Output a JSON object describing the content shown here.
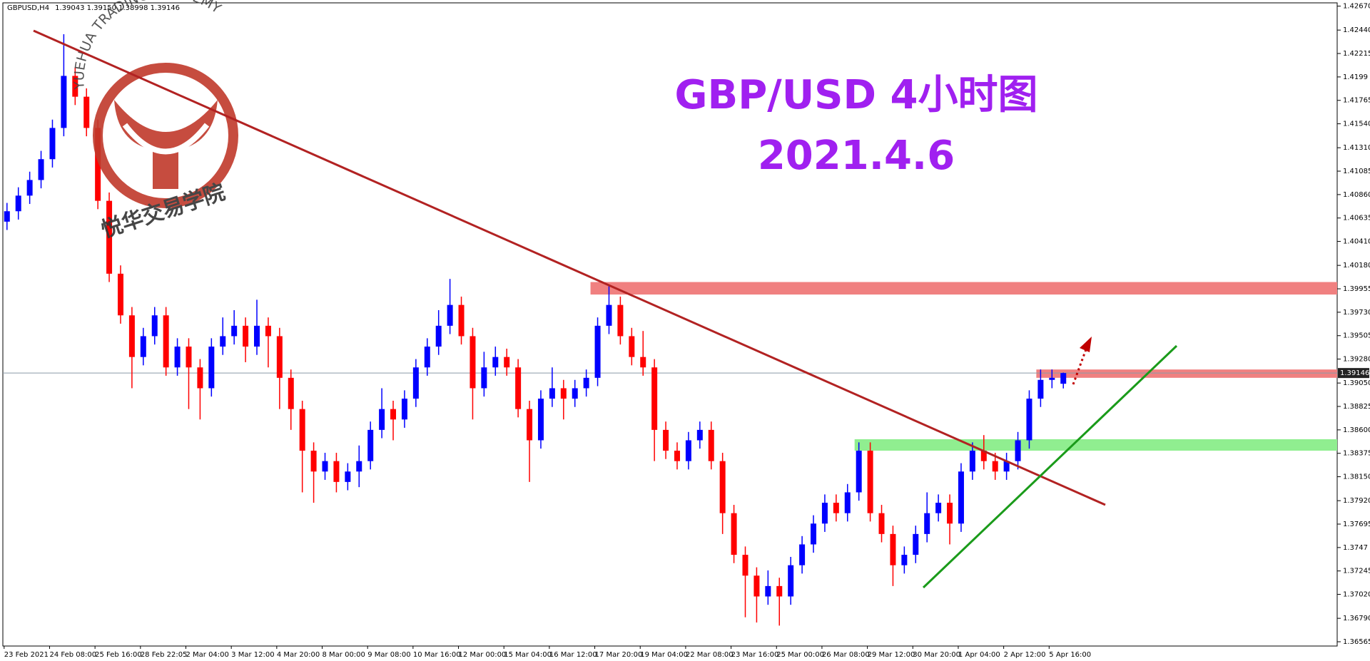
{
  "header": {
    "symbol": "GBPUSD,H4",
    "ohlc_text": "1.39043 1.39150 1.38998 1.39146"
  },
  "logo": {
    "text_en": "YUEHUA TRADING ACADEMY",
    "text_cn": "悦华交易学院"
  },
  "chart_data": {
    "type": "candlestick",
    "title": "GBP/USD 4小时图",
    "subtitle": "2021.4.6",
    "categories": [
      "23 Feb 2021",
      null,
      null,
      null,
      "24 Feb 08:00",
      null,
      null,
      null,
      "25 Feb 16:00",
      null,
      null,
      null,
      "28 Feb 22:05",
      null,
      null,
      null,
      "2 Mar 04:00",
      null,
      null,
      null,
      "3 Mar 12:00",
      null,
      null,
      null,
      "4 Mar 20:00",
      null,
      null,
      null,
      "8 Mar 00:00",
      null,
      null,
      null,
      "9 Mar 08:00",
      null,
      null,
      null,
      "10 Mar 16:00",
      null,
      null,
      null,
      "12 Mar 00:00",
      null,
      null,
      null,
      "15 Mar 04:00",
      null,
      null,
      null,
      "16 Mar 12:00",
      null,
      null,
      null,
      "17 Mar 20:00",
      null,
      null,
      null,
      "19 Mar 04:00",
      null,
      null,
      null,
      "22 Mar 08:00",
      null,
      null,
      null,
      "23 Mar 16:00",
      null,
      null,
      null,
      "25 Mar 00:00",
      null,
      null,
      null,
      "26 Mar 08:00",
      null,
      null,
      null,
      "29 Mar 12:00",
      null,
      null,
      null,
      "30 Mar 20:00",
      null,
      null,
      null,
      "1 Apr 04:00",
      null,
      null,
      null,
      "2 Apr 12:00",
      null,
      null,
      null,
      "5 Apr 16:00",
      null
    ],
    "open": [
      1.406,
      1.407,
      1.4085,
      1.41,
      1.412,
      1.415,
      1.42,
      1.418,
      1.415,
      1.408,
      1.401,
      1.397,
      1.393,
      1.395,
      1.397,
      1.392,
      1.394,
      1.392,
      1.39,
      1.394,
      1.395,
      1.396,
      1.394,
      1.396,
      1.395,
      1.391,
      1.388,
      1.384,
      1.382,
      1.383,
      1.381,
      1.382,
      1.383,
      1.386,
      1.388,
      1.387,
      1.389,
      1.392,
      1.394,
      1.396,
      1.398,
      1.395,
      1.39,
      1.392,
      1.393,
      1.392,
      1.388,
      1.385,
      1.389,
      1.39,
      1.389,
      1.39,
      1.391,
      1.396,
      1.398,
      1.395,
      1.393,
      1.392,
      1.386,
      1.384,
      1.383,
      1.385,
      1.386,
      1.383,
      1.378,
      1.374,
      1.372,
      1.37,
      1.371,
      1.37,
      1.373,
      1.375,
      1.377,
      1.379,
      1.378,
      1.38,
      1.384,
      1.378,
      1.376,
      1.373,
      1.374,
      1.376,
      1.378,
      1.379,
      1.377,
      1.382,
      1.384,
      1.383,
      1.382,
      1.383,
      1.385,
      1.389,
      1.3908,
      1.39043
    ],
    "high": [
      1.4078,
      1.4093,
      1.4108,
      1.4128,
      1.4158,
      1.424,
      1.4208,
      1.4188,
      1.4158,
      1.4088,
      1.4018,
      1.3978,
      1.3958,
      1.3978,
      1.3978,
      1.3948,
      1.3948,
      1.3928,
      1.3948,
      1.3968,
      1.3975,
      1.3968,
      1.3985,
      1.3968,
      1.3958,
      1.3918,
      1.3888,
      1.3848,
      1.3838,
      1.3838,
      1.3828,
      1.3845,
      1.3868,
      1.39,
      1.3888,
      1.3898,
      1.3928,
      1.3948,
      1.3975,
      1.4005,
      1.3988,
      1.3958,
      1.3935,
      1.394,
      1.3938,
      1.3928,
      1.3888,
      1.3898,
      1.392,
      1.3908,
      1.3908,
      1.3918,
      1.3968,
      1.3998,
      1.3988,
      1.3958,
      1.3955,
      1.3928,
      1.3868,
      1.3848,
      1.3858,
      1.3868,
      1.3868,
      1.3838,
      1.3788,
      1.3748,
      1.3728,
      1.3725,
      1.3718,
      1.3738,
      1.3758,
      1.3778,
      1.3798,
      1.3798,
      1.3808,
      1.3848,
      1.3848,
      1.3788,
      1.3768,
      1.3748,
      1.3768,
      1.38,
      1.3798,
      1.3798,
      1.3828,
      1.3848,
      1.3855,
      1.3838,
      1.3838,
      1.3858,
      1.3898,
      1.3918,
      1.3918,
      1.3915
    ],
    "low": [
      1.4052,
      1.4062,
      1.4077,
      1.4092,
      1.4112,
      1.4142,
      1.4172,
      1.4142,
      1.4072,
      1.4002,
      1.3962,
      1.39,
      1.3922,
      1.3942,
      1.3912,
      1.3912,
      1.388,
      1.387,
      1.3892,
      1.3932,
      1.3942,
      1.3925,
      1.3932,
      1.392,
      1.388,
      1.386,
      1.38,
      1.379,
      1.3812,
      1.38,
      1.3802,
      1.3805,
      1.3822,
      1.3852,
      1.385,
      1.3862,
      1.3882,
      1.3912,
      1.3932,
      1.3952,
      1.3942,
      1.387,
      1.3892,
      1.3912,
      1.3912,
      1.3872,
      1.381,
      1.3842,
      1.3882,
      1.387,
      1.3882,
      1.3892,
      1.3902,
      1.3952,
      1.3942,
      1.3922,
      1.3912,
      1.383,
      1.3832,
      1.3822,
      1.3822,
      1.3842,
      1.3822,
      1.376,
      1.3732,
      1.368,
      1.3675,
      1.3692,
      1.3672,
      1.3692,
      1.3722,
      1.3742,
      1.3762,
      1.3772,
      1.3772,
      1.3792,
      1.3772,
      1.3752,
      1.371,
      1.3722,
      1.3732,
      1.3752,
      1.3772,
      1.375,
      1.3762,
      1.3812,
      1.3822,
      1.3812,
      1.3812,
      1.3822,
      1.3842,
      1.3882,
      1.39,
      1.38998
    ],
    "close": [
      1.407,
      1.4085,
      1.41,
      1.412,
      1.415,
      1.42,
      1.418,
      1.415,
      1.408,
      1.401,
      1.397,
      1.393,
      1.395,
      1.397,
      1.392,
      1.394,
      1.392,
      1.39,
      1.394,
      1.395,
      1.396,
      1.394,
      1.396,
      1.395,
      1.391,
      1.388,
      1.384,
      1.382,
      1.383,
      1.381,
      1.382,
      1.383,
      1.386,
      1.388,
      1.387,
      1.389,
      1.392,
      1.394,
      1.396,
      1.398,
      1.395,
      1.39,
      1.392,
      1.393,
      1.392,
      1.388,
      1.385,
      1.389,
      1.39,
      1.389,
      1.39,
      1.391,
      1.396,
      1.398,
      1.395,
      1.393,
      1.392,
      1.386,
      1.384,
      1.383,
      1.385,
      1.386,
      1.383,
      1.378,
      1.374,
      1.372,
      1.37,
      1.371,
      1.37,
      1.373,
      1.375,
      1.377,
      1.379,
      1.378,
      1.38,
      1.384,
      1.378,
      1.376,
      1.373,
      1.374,
      1.376,
      1.378,
      1.379,
      1.377,
      1.382,
      1.384,
      1.383,
      1.382,
      1.383,
      1.385,
      1.389,
      1.3908,
      1.391,
      1.39146
    ],
    "up_color": "#0000ff",
    "down_color": "#ff0000",
    "last_price": 1.39146,
    "zones": [
      {
        "low": 1.399,
        "high": 1.4002,
        "color": "#f08080"
      },
      {
        "low": 1.391,
        "high": 1.3918,
        "color": "#f08080"
      },
      {
        "low": 1.384,
        "high": 1.3851,
        "color": "#90ee90"
      }
    ],
    "ylim": [
      1.36565,
      1.4267
    ],
    "yticks": [
      1.36565,
      {
        "value": 1.3679,
        "label": "1.36790"
      },
      {
        "value": 1.3702,
        "label": "1.37020"
      },
      1.37245,
      1.3747,
      1.37695,
      {
        "value": 1.3792,
        "label": "1.37920"
      },
      {
        "value": 1.3815,
        "label": "1.38150"
      },
      1.38375,
      {
        "value": 1.386,
        "label": "1.38600"
      },
      1.38825,
      {
        "value": 1.3905,
        "label": "1.39050"
      },
      {
        "value": 1.3928,
        "label": "1.39280"
      },
      1.39505,
      {
        "value": 1.3973,
        "label": "1.39730"
      },
      1.39955,
      {
        "value": 1.4018,
        "label": "1.40180"
      },
      {
        "value": 1.4041,
        "label": "1.40410"
      },
      1.40635,
      {
        "value": 1.4086,
        "label": "1.40860"
      },
      1.41085,
      {
        "value": 1.4131,
        "label": "1.41310"
      },
      {
        "value": 1.4154,
        "label": "1.41540"
      },
      1.41765,
      1.4199,
      1.42215,
      {
        "value": 1.4244,
        "label": "1.42440"
      },
      {
        "value": 1.4267,
        "label": "1.42670"
      }
    ]
  }
}
